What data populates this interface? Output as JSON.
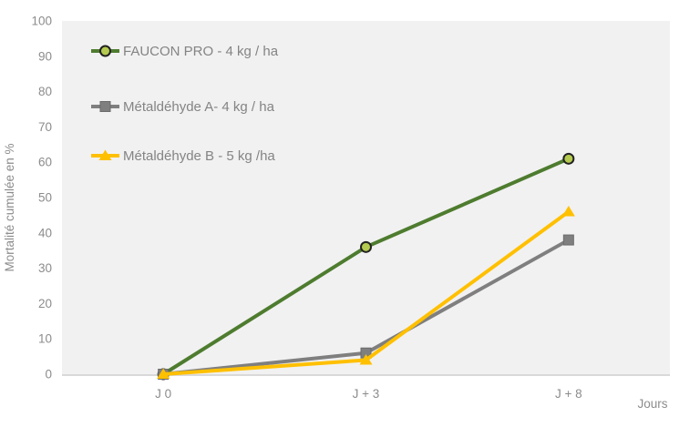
{
  "chart_data": {
    "type": "line",
    "categories": [
      "J 0",
      "J + 3",
      "J + 8"
    ],
    "series": [
      {
        "name": "FAUCON PRO - 4 kg / ha",
        "values": [
          0,
          36,
          61
        ],
        "color": "#4e7c2f",
        "marker": "circle",
        "marker_fill": "#b4ca50",
        "marker_stroke": "#222222"
      },
      {
        "name": "Métaldéhyde A- 4 kg / ha",
        "values": [
          0,
          6,
          38
        ],
        "color": "#7f7f7f",
        "marker": "square",
        "marker_fill": "#7f7f7f",
        "marker_stroke": "#6b6b6b"
      },
      {
        "name": "Métaldéhyde B - 5 kg /ha",
        "values": [
          0,
          4,
          46
        ],
        "color": "#ffc000",
        "marker": "triangle",
        "marker_fill": "#ffc000",
        "marker_stroke": "#eaaf00"
      }
    ],
    "xlabel": "Jours",
    "ylabel": "Mortalité cumulée en %",
    "ylim": [
      0,
      100
    ],
    "ytick_step": 10,
    "grid": false,
    "legend_position": "top-left-inside",
    "colors": {
      "page_bg": "#ffffff",
      "plot_bg": "#f1f1f1",
      "axis_line": "#d9d9d9",
      "text": "#8c8c8c"
    }
  }
}
